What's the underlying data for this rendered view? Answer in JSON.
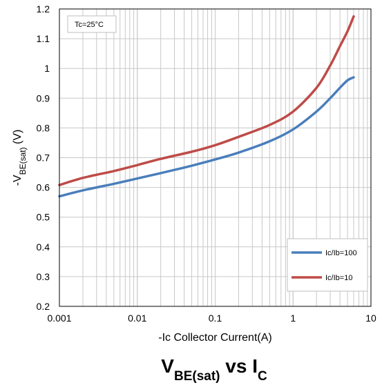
{
  "chart_data": {
    "type": "line",
    "title_parts": [
      {
        "text": "V",
        "sub": false
      },
      {
        "text": "BE(sat)",
        "sub": true
      },
      {
        "text": " vs I",
        "sub": false
      },
      {
        "text": "C",
        "sub": true
      }
    ],
    "xlabel": "-Ic Collector Current(A)",
    "ylabel_parts": [
      {
        "text": "-V",
        "sub": false
      },
      {
        "text": "BE(sat)",
        "sub": true
      },
      {
        "text": " (V)",
        "sub": false
      }
    ],
    "xscale": "log",
    "xlim": [
      0.001,
      10
    ],
    "ylim": [
      0.2,
      1.2
    ],
    "xticks": [
      0.001,
      0.01,
      0.1,
      1,
      10
    ],
    "xtick_labels": [
      "0.001",
      "0.01",
      "0.1",
      "1",
      "10"
    ],
    "yticks": [
      0.2,
      0.3,
      0.4,
      0.5,
      0.6,
      0.7,
      0.8,
      0.9,
      1.0,
      1.1,
      1.2
    ],
    "ytick_labels": [
      "0.2",
      "0.3",
      "0.4",
      "0.5",
      "0.6",
      "0.7",
      "0.8",
      "0.9",
      "1",
      "1.1",
      "1.2"
    ],
    "grid": true,
    "annotation": "Tc=25°C",
    "legend_position": "bottom-right",
    "series": [
      {
        "name": "Ic/Ib=100",
        "color": "#4a7ebb",
        "x": [
          0.001,
          0.002,
          0.005,
          0.01,
          0.02,
          0.05,
          0.1,
          0.2,
          0.5,
          1,
          2,
          3,
          4,
          5,
          6
        ],
        "y": [
          0.57,
          0.59,
          0.612,
          0.63,
          0.648,
          0.673,
          0.694,
          0.717,
          0.755,
          0.795,
          0.855,
          0.9,
          0.935,
          0.96,
          0.97
        ]
      },
      {
        "name": "Ic/Ib=10",
        "color": "#be4b48",
        "x": [
          0.001,
          0.002,
          0.005,
          0.01,
          0.02,
          0.05,
          0.1,
          0.2,
          0.5,
          1,
          2,
          3,
          4,
          5,
          6
        ],
        "y": [
          0.608,
          0.632,
          0.655,
          0.675,
          0.696,
          0.72,
          0.742,
          0.77,
          0.81,
          0.855,
          0.935,
          1.01,
          1.075,
          1.125,
          1.175
        ]
      }
    ]
  }
}
